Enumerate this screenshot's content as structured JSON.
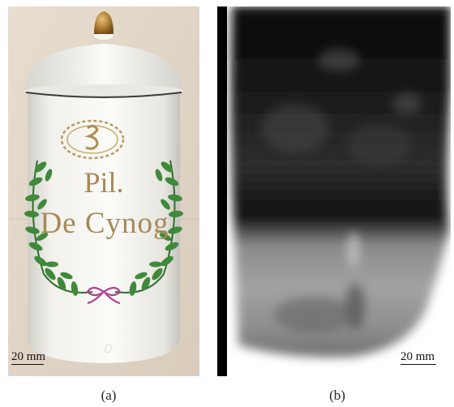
{
  "panel_a": {
    "jar_label_line1": "Pil.",
    "jar_label_line2": "De Cynog",
    "scale_bar_label": "20 mm",
    "caption": "(a)"
  },
  "panel_b": {
    "scale_bar_label": "20 mm",
    "caption": "(b)"
  },
  "colors": {
    "gilding": "#a7885a",
    "laurel_green": "#3f8a3a",
    "ribbon_pink": "#b0418f",
    "porcelain": "#f4f3ee"
  }
}
